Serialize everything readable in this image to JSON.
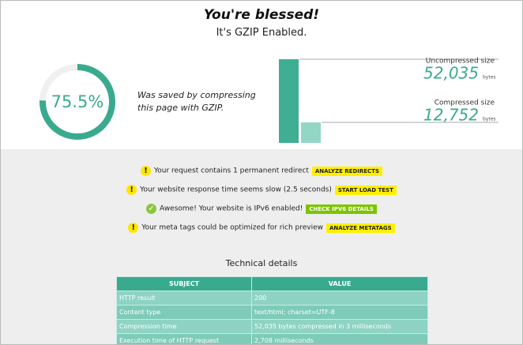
{
  "header": {
    "title": "You're blessed!",
    "subtitle": "It's GZIP Enabled."
  },
  "savings": {
    "value": 75.5,
    "label": "75.5%",
    "caption": "Was saved by compressing this page with GZIP."
  },
  "sizes": {
    "max": 52035,
    "unit": "bytes",
    "items": [
      {
        "name": "Uncompressed size",
        "value": 52035,
        "label": "52,035"
      },
      {
        "name": "Compressed size",
        "value": 12752,
        "label": "12,752"
      }
    ]
  },
  "alerts": [
    {
      "status": "warning",
      "text": "Your request contains 1 permanent redirect",
      "button": "ANALYZE REDIRECTS"
    },
    {
      "status": "warning",
      "text": "Your website response time seems slow (2.5 seconds)",
      "button": "START LOAD TEST"
    },
    {
      "status": "ok",
      "text": "Awesome! Your website is IPv6 enabled!",
      "button": "CHECK IPV6 DETAILS"
    },
    {
      "status": "warning",
      "text": "Your meta tags could be optimized for rich preview",
      "button": "ANALYZE METATAGS"
    }
  ],
  "table": {
    "title": "Technical details",
    "header": [
      "SUBJECT",
      "VALUE"
    ],
    "rows": [
      [
        "HTTP result",
        "200"
      ],
      [
        "Content type",
        "text/html; charset=UTF-8"
      ],
      [
        "Compression time",
        "52,035 bytes compressed in 3 milliseconds"
      ],
      [
        "Execution time of HTTP request",
        "2,708 milliseconds"
      ]
    ]
  }
}
